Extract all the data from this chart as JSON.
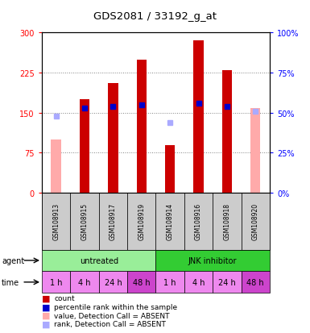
{
  "title": "GDS2081 / 33192_g_at",
  "samples": [
    "GSM108913",
    "GSM108915",
    "GSM108917",
    "GSM108919",
    "GSM108914",
    "GSM108916",
    "GSM108918",
    "GSM108920"
  ],
  "count_values": [
    null,
    175,
    205,
    250,
    90,
    285,
    230,
    null
  ],
  "count_absent": [
    100,
    null,
    null,
    null,
    null,
    null,
    null,
    158
  ],
  "percentile_rank": [
    null,
    53,
    54,
    55,
    null,
    56,
    54,
    null
  ],
  "percentile_absent": [
    48,
    null,
    null,
    null,
    44,
    null,
    null,
    51
  ],
  "time_labels": [
    "1 h",
    "4 h",
    "24 h",
    "48 h",
    "1 h",
    "4 h",
    "24 h",
    "48 h"
  ],
  "time_highlight": [
    false,
    false,
    false,
    true,
    false,
    false,
    false,
    true
  ],
  "ylim_left": [
    0,
    300
  ],
  "ylim_right": [
    0,
    100
  ],
  "yticks_left": [
    0,
    75,
    150,
    225,
    300
  ],
  "yticks_right": [
    0,
    25,
    50,
    75,
    100
  ],
  "bar_color_red": "#cc0000",
  "bar_color_pink": "#ffaaaa",
  "dot_color_blue": "#0000cc",
  "dot_color_lightblue": "#aaaaff",
  "agent_color_light": "#99ee99",
  "agent_color_dark": "#33cc33",
  "time_color": "#ee88ee",
  "time_highlight_color": "#cc44cc",
  "sample_bg": "#cccccc",
  "legend_labels": [
    "count",
    "percentile rank within the sample",
    "value, Detection Call = ABSENT",
    "rank, Detection Call = ABSENT"
  ],
  "legend_colors": [
    "#cc0000",
    "#0000cc",
    "#ffaaaa",
    "#aaaaff"
  ]
}
